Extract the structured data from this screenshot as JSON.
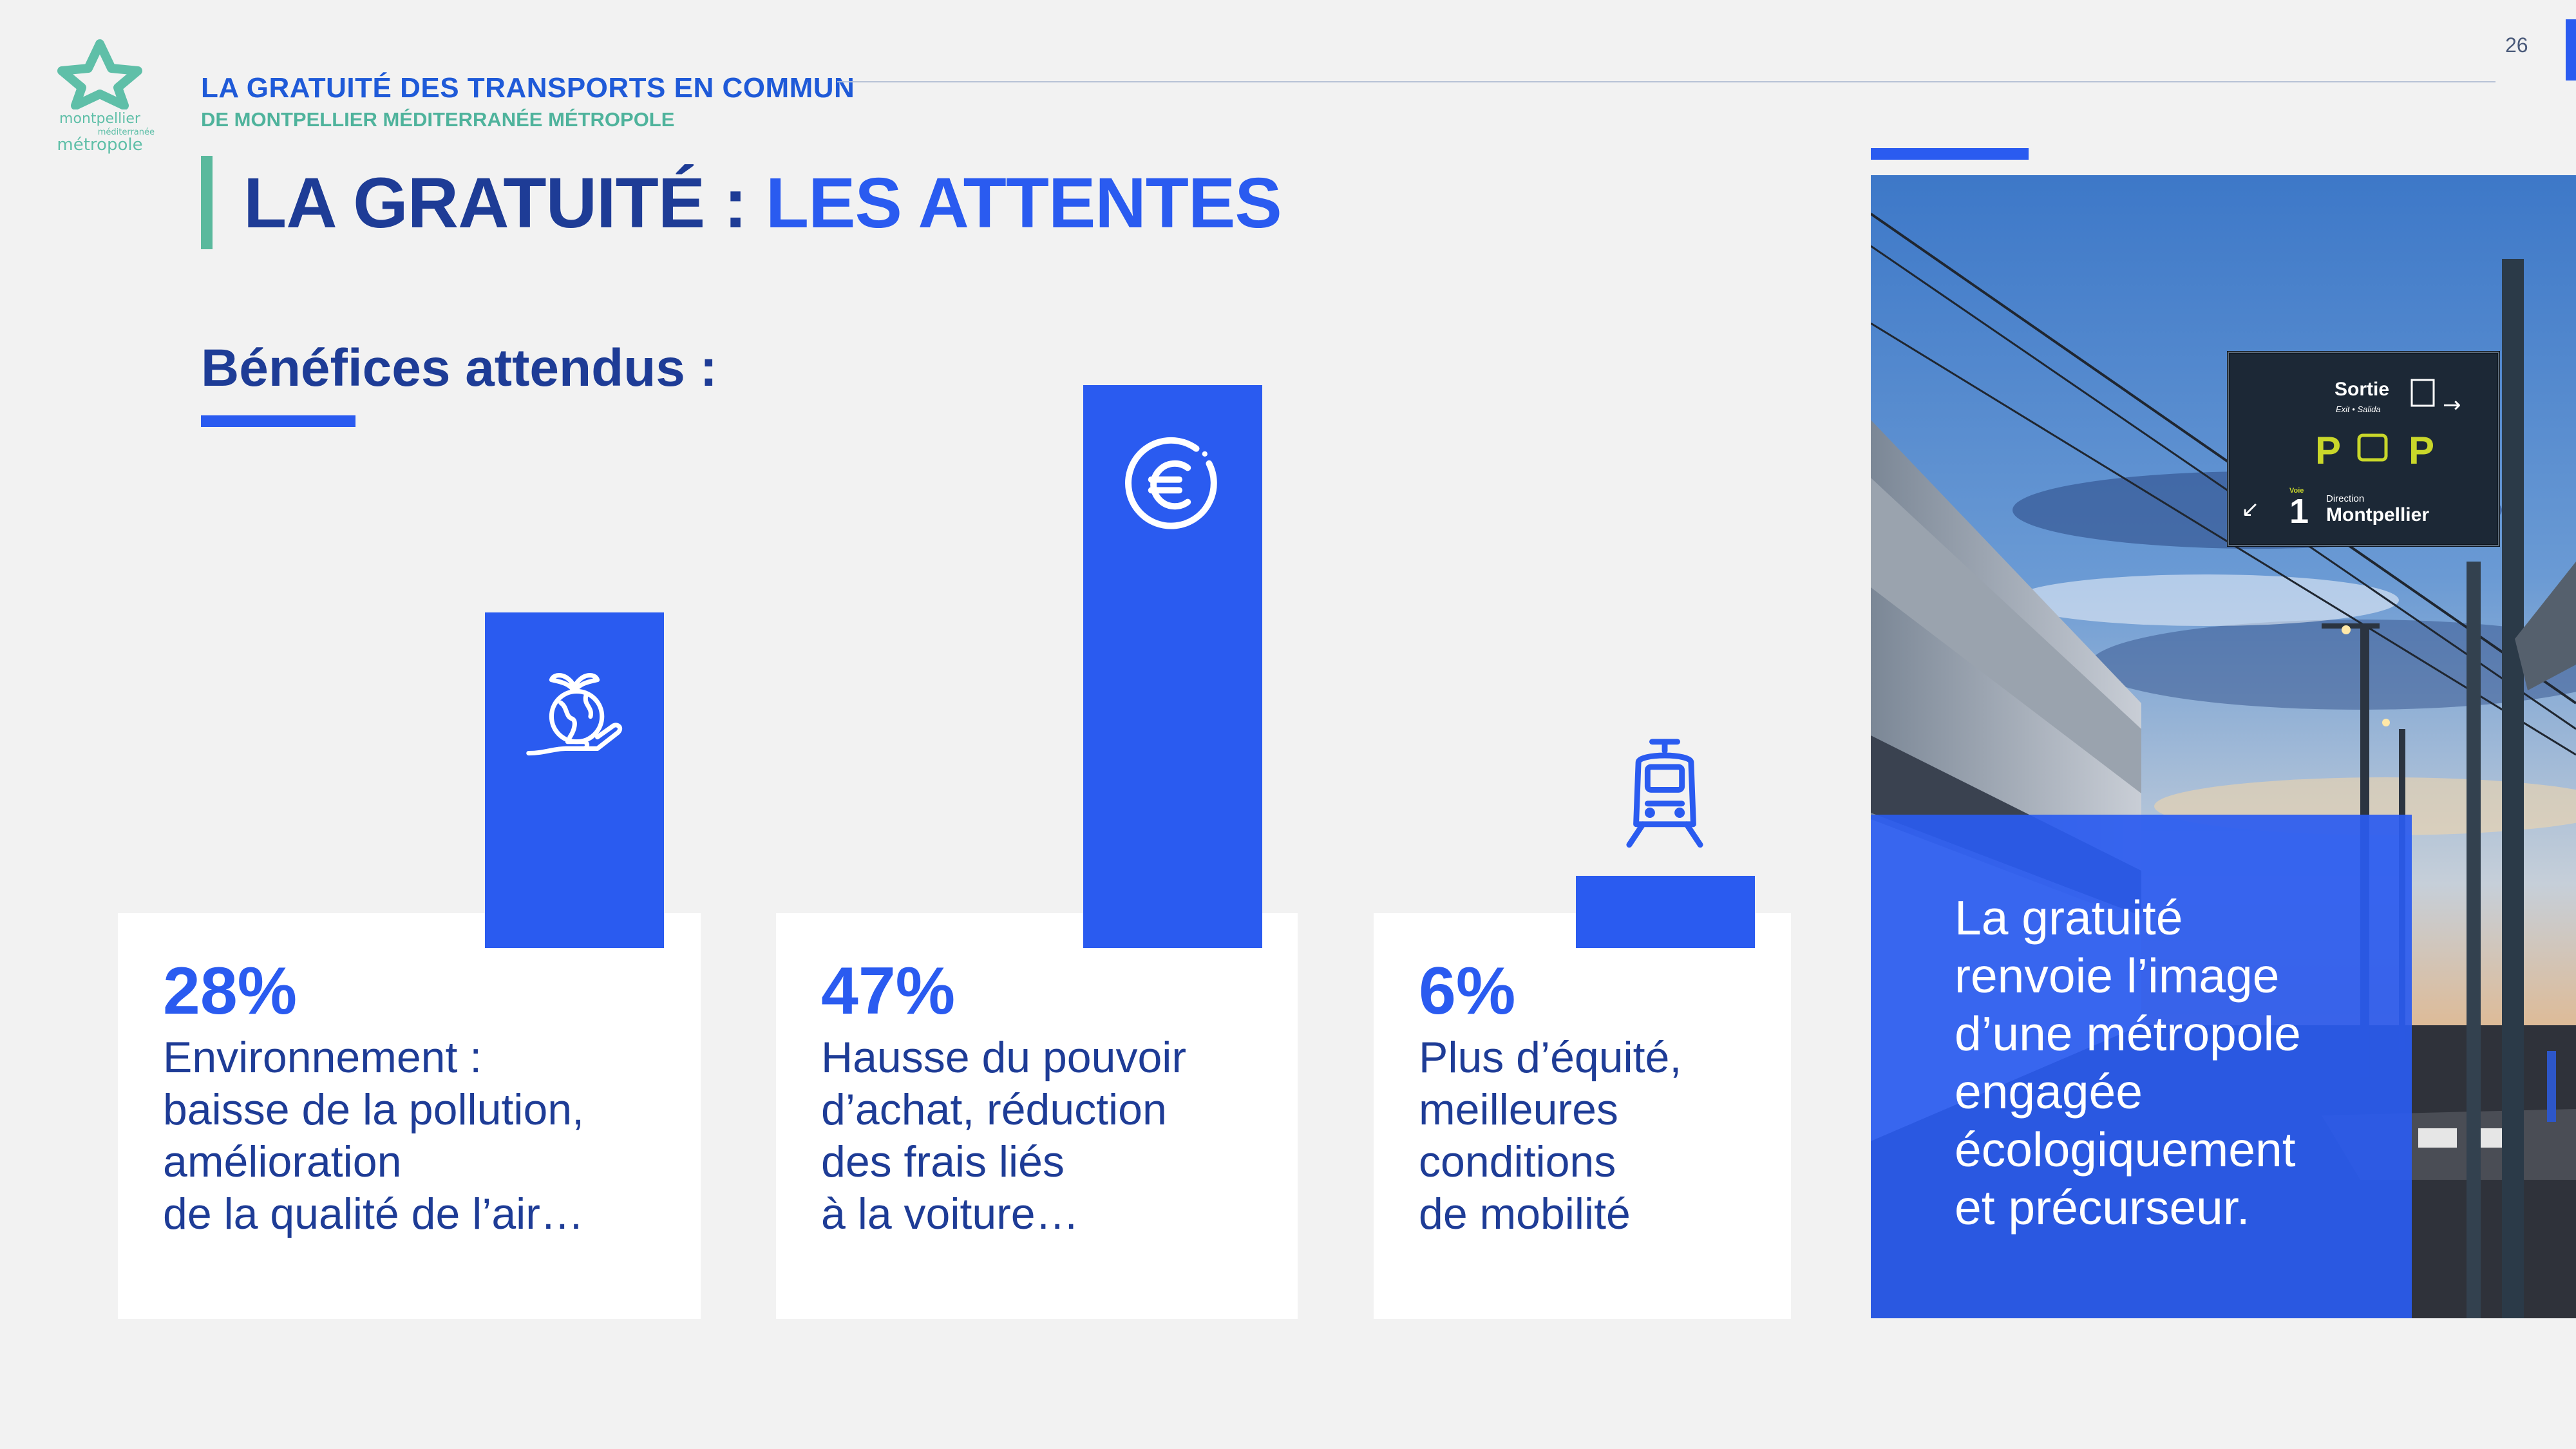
{
  "header": {
    "logo": {
      "line1": "montpellier",
      "line2": "méditerranée",
      "line3": "métropole",
      "color": "#5fbfa8"
    },
    "line1": "LA GRATUITÉ DES TRANSPORTS EN COMMUN",
    "line2": "DE MONTPELLIER MÉDITERRANÉE MÉTROPOLE",
    "page_number": "26"
  },
  "title": {
    "part1": "LA GRATUITÉ : ",
    "part2": "LES ATTENTES"
  },
  "subtitle": "Bénéfices attendus :",
  "chart_data": {
    "type": "bar",
    "categories": [
      "Environnement",
      "Hausse du pouvoir d’achat",
      "Plus d’équité"
    ],
    "values": [
      28,
      47,
      6
    ],
    "unit": "%",
    "title": ""
  },
  "cards": [
    {
      "percent": "28%",
      "icon": "earth-hand-plant-icon",
      "lines": [
        "Environnement :",
        "baisse de la pollution,",
        "amélioration",
        "de la qualité de l’air…"
      ]
    },
    {
      "percent": "47%",
      "icon": "euro-icon",
      "lines": [
        "Hausse du pouvoir",
        "d’achat, réduction",
        "des frais liés",
        "à la voiture…"
      ]
    },
    {
      "percent": "6%",
      "icon": "tram-icon",
      "lines": [
        "Plus d’équité,",
        "meilleures",
        "conditions",
        "de mobilité"
      ]
    }
  ],
  "photo": {
    "sign": {
      "exit_label": "Sortie",
      "exit_sub": "Exit • Salida",
      "parking": "P",
      "parking_bike": "P",
      "track_label": "Voie",
      "track": "1",
      "direction_label": "Direction",
      "direction": "Montpellier"
    }
  },
  "quote_lines": [
    "La gratuité",
    "renvoie l’image",
    "d’une métropole",
    "engagée",
    "écologiquement",
    "et précurseur."
  ],
  "colors": {
    "accent": "#2a5bf0",
    "dark_blue": "#1e3c96",
    "green": "#5ab99d",
    "background": "#f2f2f2"
  }
}
